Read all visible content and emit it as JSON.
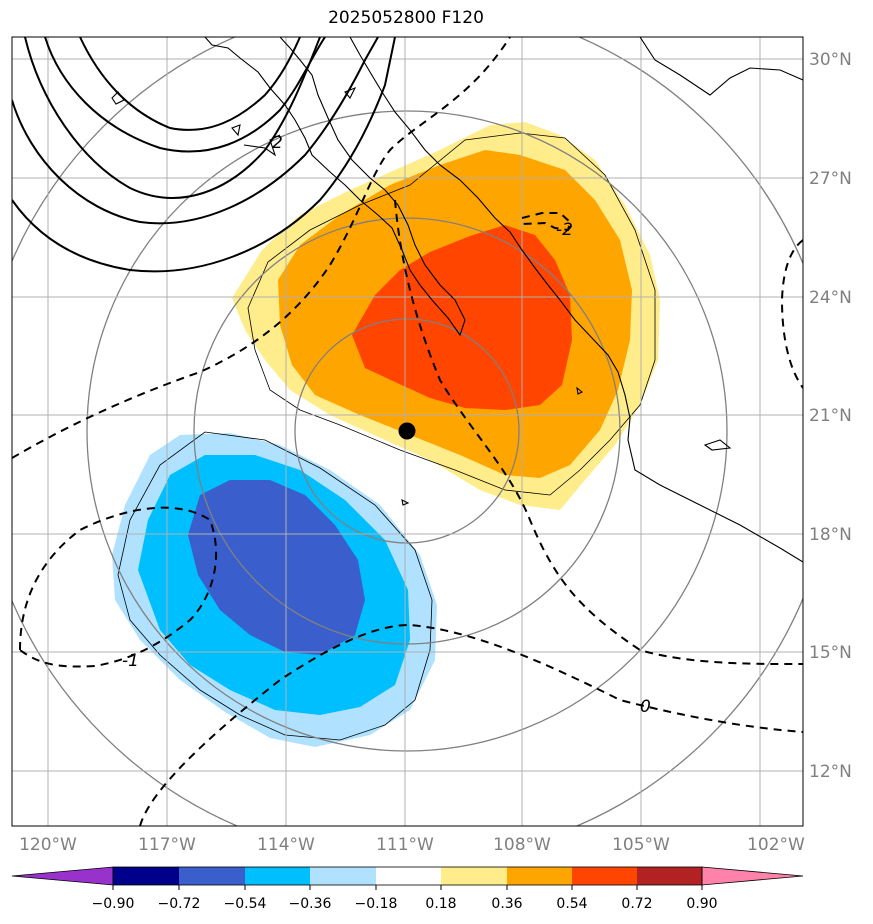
{
  "title": "2025052800 F120",
  "map": {
    "lon_labels": [
      "120°W",
      "117°W",
      "114°W",
      "111°W",
      "108°W",
      "105°W",
      "102°W"
    ],
    "lat_labels": [
      "30°N",
      "27°N",
      "24°N",
      "21°N",
      "18°N",
      "15°N",
      "12°N"
    ],
    "contour_labels": [
      "-1",
      "0",
      "-2",
      "2"
    ]
  },
  "colorbar": {
    "ticks": [
      "−0.90",
      "−0.72",
      "−0.54",
      "−0.36",
      "−0.18",
      "0.18",
      "0.36",
      "0.54",
      "0.72",
      "0.90"
    ],
    "colors": [
      "#9932CC",
      "#00008B",
      "#3A5FCD",
      "#00BFFF",
      "#B0E2FF",
      "#FFFFFF",
      "#FFEC8B",
      "#FFA500",
      "#FF4500",
      "#B22222",
      "#FF82AB"
    ]
  },
  "fill_colors": {
    "pos1": "#FFEC8B",
    "pos2": "#FFA500",
    "pos3": "#FF4500",
    "neg1": "#B0E2FF",
    "neg2": "#00BFFF",
    "neg3": "#3A5FCD"
  }
}
